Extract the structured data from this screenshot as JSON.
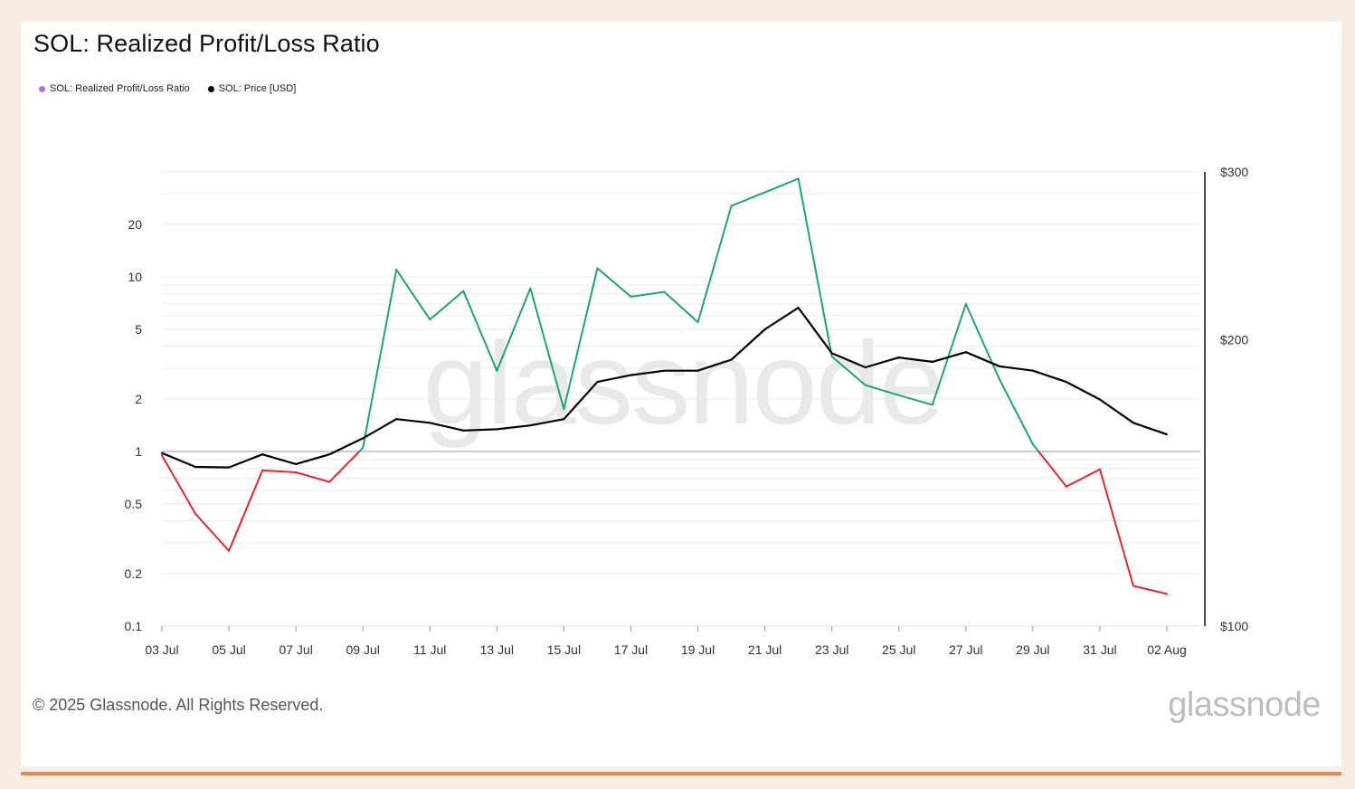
{
  "page": {
    "title": "SOL: Realized Profit/Loss Ratio",
    "footer": "© 2025 Glassnode. All Rights Reserved.",
    "brand": "glassnode",
    "watermark": "glassnode"
  },
  "legend": [
    {
      "label": "SOL: Realized Profit/Loss Ratio",
      "color": "#b46cf0"
    },
    {
      "label": "SOL: Price [USD]",
      "color": "#000000"
    }
  ],
  "colors": {
    "above_one": "#1aa86b",
    "below_one": "#e8262a",
    "price": "#000000",
    "grid": "#ececec",
    "baseline": "#9a9a9a"
  },
  "chart_data": {
    "type": "line",
    "x": [
      "03 Jul",
      "04 Jul",
      "05 Jul",
      "06 Jul",
      "07 Jul",
      "08 Jul",
      "09 Jul",
      "10 Jul",
      "11 Jul",
      "12 Jul",
      "13 Jul",
      "14 Jul",
      "15 Jul",
      "16 Jul",
      "17 Jul",
      "18 Jul",
      "19 Jul",
      "20 Jul",
      "21 Jul",
      "22 Jul",
      "23 Jul",
      "24 Jul",
      "25 Jul",
      "26 Jul",
      "27 Jul",
      "28 Jul",
      "29 Jul",
      "30 Jul",
      "31 Jul",
      "01 Aug",
      "02 Aug"
    ],
    "x_ticks": [
      "03 Jul",
      "05 Jul",
      "07 Jul",
      "09 Jul",
      "11 Jul",
      "13 Jul",
      "15 Jul",
      "17 Jul",
      "19 Jul",
      "21 Jul",
      "23 Jul",
      "25 Jul",
      "27 Jul",
      "29 Jul",
      "31 Jul",
      "02 Aug"
    ],
    "series": [
      {
        "name": "SOL: Realized Profit/Loss Ratio",
        "axis": "left",
        "scale": "log",
        "values": [
          0.95,
          0.44,
          0.27,
          0.78,
          0.76,
          0.67,
          1.05,
          11.0,
          5.7,
          8.3,
          2.9,
          8.6,
          1.75,
          11.2,
          7.7,
          8.2,
          5.5,
          25.5,
          30.5,
          36.5,
          3.5,
          2.4,
          2.1,
          1.85,
          7.0,
          2.6,
          1.1,
          0.63,
          0.79,
          0.17,
          0.153
        ]
      },
      {
        "name": "SOL: Price [USD]",
        "axis": "right",
        "scale": "log",
        "values": [
          152,
          147,
          146.8,
          151.5,
          148,
          151.5,
          157.5,
          165,
          163.5,
          160.5,
          161,
          162.5,
          165,
          180.5,
          183.5,
          185.5,
          185.5,
          190.5,
          205,
          216,
          193.5,
          187,
          191.5,
          189.5,
          194,
          187.5,
          185.5,
          180.5,
          173,
          163.5,
          159
        ]
      }
    ],
    "y_left": {
      "scale": "log",
      "range": [
        0.1,
        40
      ],
      "ticks": [
        "0.1",
        "0.2",
        "0.5",
        "1",
        "2",
        "5",
        "10",
        "20"
      ],
      "reference_line": 1
    },
    "y_right": {
      "scale": "log",
      "range": [
        100,
        300
      ],
      "ticks": [
        "$100",
        "$200",
        "$300"
      ]
    },
    "grid": true,
    "legend_position": "top-left"
  }
}
